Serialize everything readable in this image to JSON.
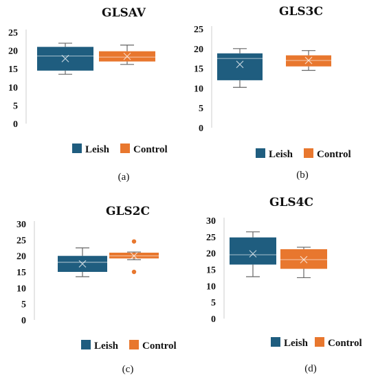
{
  "colors": {
    "leish": "#1f5d7f",
    "control": "#e8772e",
    "whisker": "#666666",
    "axis": "#cccccc"
  },
  "legend": {
    "leish_label": "Leish",
    "control_label": "Control"
  },
  "chart_data": [
    {
      "type": "boxplot",
      "title": "GLSAV",
      "panel_label": "(a)",
      "ylim": [
        0,
        25
      ],
      "yticks": [
        0,
        5,
        10,
        15,
        20,
        25
      ],
      "series": [
        {
          "name": "Leish",
          "min": 13.5,
          "q1": 14.5,
          "median": 18.5,
          "q3": 21,
          "max": 22,
          "mean": 17.8,
          "outliers": []
        },
        {
          "name": "Control",
          "min": 16.2,
          "q1": 17,
          "median": 18.2,
          "q3": 19.8,
          "max": 21.5,
          "mean": 18.4,
          "outliers": []
        }
      ]
    },
    {
      "type": "boxplot",
      "title": "GLS3C",
      "panel_label": "(b)",
      "ylim": [
        0,
        25
      ],
      "yticks": [
        0,
        5,
        10,
        15,
        20,
        25
      ],
      "series": [
        {
          "name": "Leish",
          "min": 10.2,
          "q1": 12,
          "median": 17.5,
          "q3": 18.8,
          "max": 20,
          "mean": 16,
          "outliers": []
        },
        {
          "name": "Control",
          "min": 14.5,
          "q1": 15.5,
          "median": 17,
          "q3": 18.3,
          "max": 19.5,
          "mean": 17,
          "outliers": []
        }
      ]
    },
    {
      "type": "boxplot",
      "title": "GLS2C",
      "panel_label": "(c)",
      "ylim": [
        0,
        30
      ],
      "yticks": [
        0,
        5,
        10,
        15,
        20,
        25,
        30
      ],
      "series": [
        {
          "name": "Leish",
          "min": 13.5,
          "q1": 15,
          "median": 18,
          "q3": 20,
          "max": 22.5,
          "mean": 17.5,
          "outliers": []
        },
        {
          "name": "Control",
          "min": 18.8,
          "q1": 19.2,
          "median": 20,
          "q3": 21,
          "max": 21.2,
          "mean": 20,
          "outliers": [
            15,
            24.5
          ]
        }
      ]
    },
    {
      "type": "boxplot",
      "title": "GLS4C",
      "panel_label": "(d)",
      "ylim": [
        0,
        30
      ],
      "yticks": [
        0,
        5,
        10,
        15,
        20,
        25,
        30
      ],
      "series": [
        {
          "name": "Leish",
          "min": 12.8,
          "q1": 16.5,
          "median": 19.5,
          "q3": 24.8,
          "max": 26.5,
          "mean": 19.8,
          "outliers": []
        },
        {
          "name": "Control",
          "min": 12.5,
          "q1": 15.2,
          "median": 18,
          "q3": 21.2,
          "max": 21.8,
          "mean": 18,
          "outliers": []
        }
      ]
    }
  ]
}
